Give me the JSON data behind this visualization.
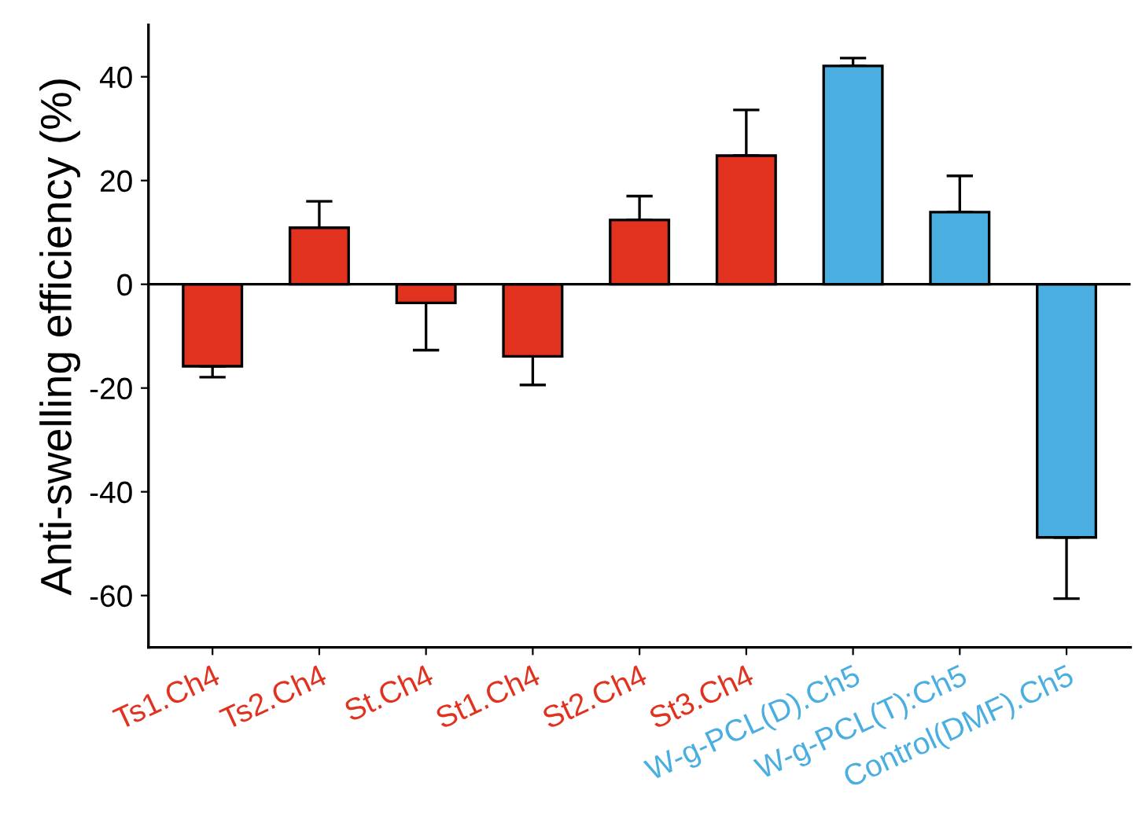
{
  "chart_data": {
    "type": "bar",
    "ylabel": "Anti-swelling efficiency (%)",
    "categories": [
      "Ts1.Ch4",
      "Ts2.Ch4",
      "St.Ch4",
      "St1.Ch4",
      "St2.Ch4",
      "St3.Ch4",
      "W-g-PCL(D).Ch5",
      "W-g-PCL(T):Ch5",
      "Control(DMF).Ch5"
    ],
    "values": [
      -15.8,
      10.9,
      -3.6,
      -13.9,
      12.4,
      24.8,
      42.1,
      13.9,
      -48.8
    ],
    "errors": [
      [
        -17.9,
        -15.8
      ],
      [
        10.9,
        16.0
      ],
      [
        -12.7,
        -3.6
      ],
      [
        -19.4,
        -13.9
      ],
      [
        12.4,
        17.0
      ],
      [
        24.8,
        33.6
      ],
      [
        42.1,
        43.6
      ],
      [
        13.9,
        20.9
      ],
      [
        -60.6,
        -48.8
      ]
    ],
    "ref_lines": [
      {
        "axis": "y",
        "value": 0,
        "color": "#000000"
      }
    ],
    "colors": [
      "#e0321f",
      "#e0321f",
      "#e0321f",
      "#e0321f",
      "#e0321f",
      "#e0321f",
      "#4aaee0",
      "#4aaee0",
      "#4aaee0"
    ],
    "ylim": [
      -70,
      50
    ],
    "yticks": [
      {
        "value": -60,
        "label": "-60"
      },
      {
        "value": -40,
        "label": "-40"
      },
      {
        "value": -20,
        "label": "-20"
      },
      0,
      20,
      40
    ],
    "grid": false,
    "legend": false
  }
}
